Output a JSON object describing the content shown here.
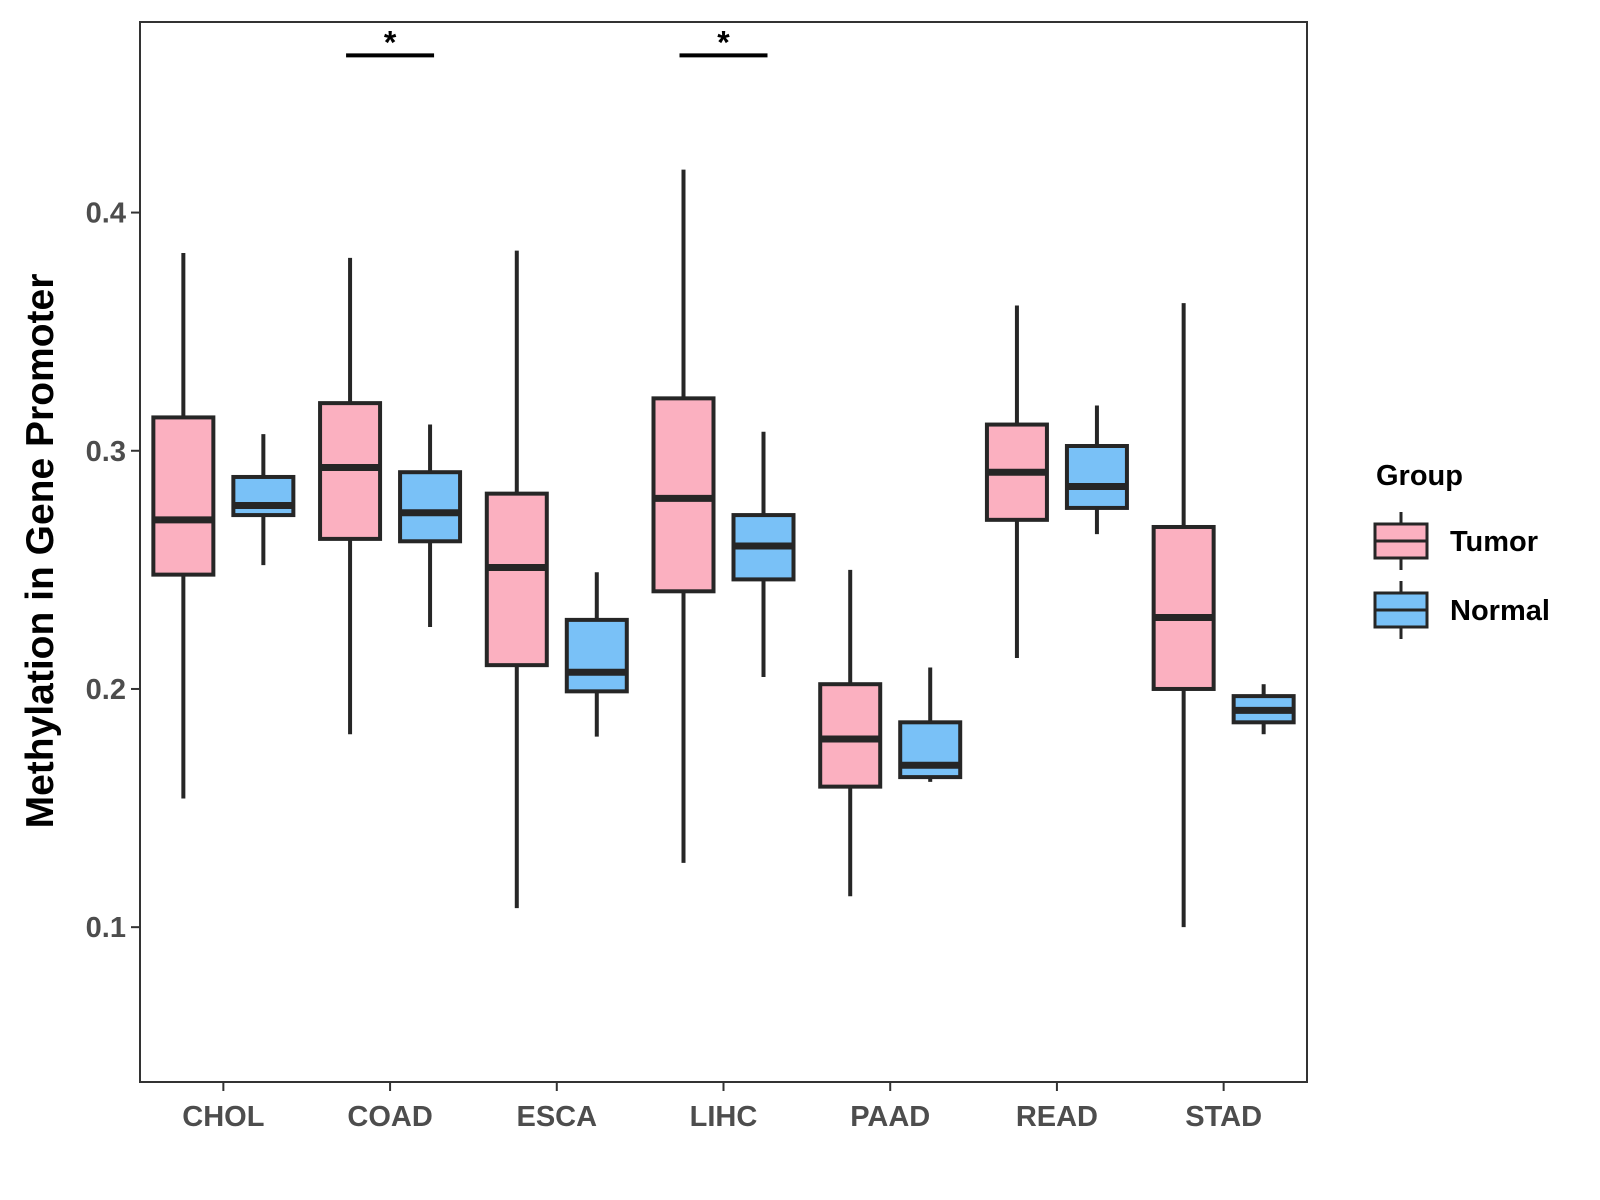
{
  "chart_data": {
    "type": "boxplot",
    "title": "",
    "xlabel": "",
    "ylabel": "Methylation in Gene Promoter",
    "ylim": [
      0.035,
      0.48
    ],
    "yticks": [
      0.1,
      0.2,
      0.3,
      0.4
    ],
    "ytick_labels": [
      "0.1",
      "0.2",
      "0.3",
      "0.4"
    ],
    "categories": [
      "CHOL",
      "COAD",
      "ESCA",
      "LIHC",
      "PAAD",
      "READ",
      "STAD"
    ],
    "grid": false,
    "legend": {
      "title": "Group",
      "position": "right"
    },
    "series": [
      {
        "name": "Tumor",
        "color": "#fbb0c0",
        "boxes": [
          {
            "min": 0.154,
            "q1": 0.248,
            "median": 0.271,
            "q3": 0.314,
            "max": 0.383
          },
          {
            "min": 0.181,
            "q1": 0.263,
            "median": 0.293,
            "q3": 0.32,
            "max": 0.381
          },
          {
            "min": 0.108,
            "q1": 0.21,
            "median": 0.251,
            "q3": 0.282,
            "max": 0.384
          },
          {
            "min": 0.127,
            "q1": 0.241,
            "median": 0.28,
            "q3": 0.322,
            "max": 0.418
          },
          {
            "min": 0.113,
            "q1": 0.159,
            "median": 0.179,
            "q3": 0.202,
            "max": 0.25
          },
          {
            "min": 0.213,
            "q1": 0.271,
            "median": 0.291,
            "q3": 0.311,
            "max": 0.361
          },
          {
            "min": 0.1,
            "q1": 0.2,
            "median": 0.23,
            "q3": 0.268,
            "max": 0.362
          }
        ]
      },
      {
        "name": "Normal",
        "color": "#79c1f7",
        "boxes": [
          {
            "min": 0.252,
            "q1": 0.273,
            "median": 0.277,
            "q3": 0.289,
            "max": 0.307
          },
          {
            "min": 0.226,
            "q1": 0.262,
            "median": 0.274,
            "q3": 0.291,
            "max": 0.311
          },
          {
            "min": 0.18,
            "q1": 0.199,
            "median": 0.207,
            "q3": 0.229,
            "max": 0.249
          },
          {
            "min": 0.205,
            "q1": 0.246,
            "median": 0.26,
            "q3": 0.273,
            "max": 0.308
          },
          {
            "min": 0.161,
            "q1": 0.163,
            "median": 0.168,
            "q3": 0.186,
            "max": 0.209
          },
          {
            "min": 0.265,
            "q1": 0.276,
            "median": 0.285,
            "q3": 0.302,
            "max": 0.319
          },
          {
            "min": 0.181,
            "q1": 0.186,
            "median": 0.191,
            "q3": 0.197,
            "max": 0.202
          }
        ]
      }
    ],
    "annotations": [
      {
        "category": "COAD",
        "text": "*",
        "y": 0.466
      },
      {
        "category": "LIHC",
        "text": "*",
        "y": 0.466
      }
    ]
  }
}
